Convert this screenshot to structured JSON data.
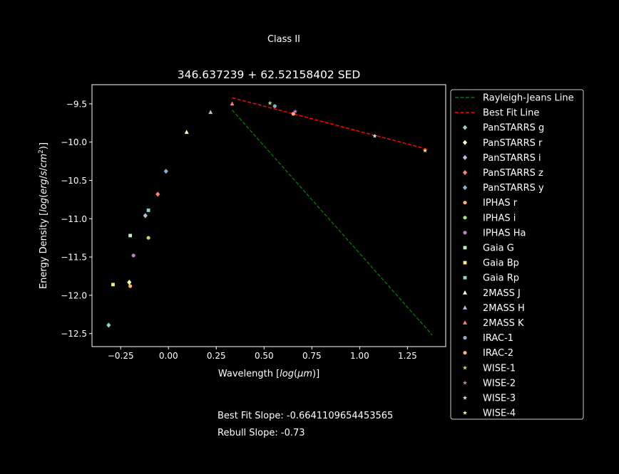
{
  "suptitle": "Class II",
  "footer": {
    "best_fit_slope": "Best Fit Slope: -0.6641109654453565",
    "rebull_slope": "Rebull Slope: -0.73"
  },
  "chart_data": {
    "type": "scatter",
    "title": "346.637239 + 62.52158402 SED",
    "xlabel": "Wavelength [log(μm)]",
    "ylabel": "Energy Density [log(erg/s/cm²)]",
    "xlim": [
      -0.4,
      1.45
    ],
    "ylim": [
      -12.67,
      -9.25
    ],
    "xticks": [
      -0.25,
      0.0,
      0.25,
      0.5,
      0.75,
      1.0,
      1.25
    ],
    "xtick_labels": [
      "−0.25",
      "0.00",
      "0.25",
      "0.50",
      "0.75",
      "1.00",
      "1.25"
    ],
    "yticks": [
      -12.5,
      -12.0,
      -11.5,
      -11.0,
      -10.5,
      -10.0,
      -9.5
    ],
    "ytick_labels": [
      "−12.5",
      "−12.0",
      "−11.5",
      "−11.0",
      "−10.5",
      "−10.0",
      "−9.5"
    ],
    "grid": false,
    "legend_position": "outside-right",
    "lines": [
      {
        "name": "Rayleigh-Jeans Line",
        "color": "#008000",
        "x": [
          0.333,
          1.38
        ],
        "y": [
          -9.58,
          -12.52
        ]
      },
      {
        "name": "Best Fit Line",
        "color": "#ff0000",
        "x": [
          0.333,
          1.35
        ],
        "y": [
          -9.42,
          -10.09
        ]
      }
    ],
    "series": [
      {
        "name": "PanSTARRS g",
        "marker": "diamond",
        "color": "#8dd3c7",
        "x": [
          -0.313
        ],
        "y": [
          -12.39
        ]
      },
      {
        "name": "PanSTARRS r",
        "marker": "diamond",
        "color": "#ffffb3",
        "x": [
          -0.205
        ],
        "y": [
          -11.83
        ]
      },
      {
        "name": "PanSTARRS i",
        "marker": "diamond",
        "color": "#bebada",
        "x": [
          -0.121
        ],
        "y": [
          -10.96
        ]
      },
      {
        "name": "PanSTARRS z",
        "marker": "diamond",
        "color": "#fb8072",
        "x": [
          -0.056
        ],
        "y": [
          -10.68
        ]
      },
      {
        "name": "PanSTARRS y",
        "marker": "diamond",
        "color": "#80b1d3",
        "x": [
          -0.013
        ],
        "y": [
          -10.38
        ]
      },
      {
        "name": "IPHAS r",
        "marker": "circle",
        "color": "#fdb462",
        "x": [
          -0.2
        ],
        "y": [
          -11.88
        ]
      },
      {
        "name": "IPHAS i",
        "marker": "circle",
        "color": "#b3de69",
        "x": [
          -0.105
        ],
        "y": [
          -11.25
        ]
      },
      {
        "name": "IPHAS Ha",
        "marker": "circle",
        "color": "#bc80bd",
        "x": [
          -0.183
        ],
        "y": [
          -11.48
        ]
      },
      {
        "name": "Gaia G",
        "marker": "square",
        "color": "#ccebc5",
        "x": [
          -0.2
        ],
        "y": [
          -11.22
        ]
      },
      {
        "name": "Gaia Bp",
        "marker": "square",
        "color": "#ffed6f",
        "x": [
          -0.29
        ],
        "y": [
          -11.86
        ]
      },
      {
        "name": "Gaia Rp",
        "marker": "square",
        "color": "#8dd3c7",
        "x": [
          -0.105
        ],
        "y": [
          -10.89
        ]
      },
      {
        "name": "2MASS J",
        "marker": "triangle",
        "color": "#ffffb3",
        "x": [
          0.095
        ],
        "y": [
          -9.87
        ]
      },
      {
        "name": "2MASS H",
        "marker": "triangle",
        "color": "#bebada",
        "x": [
          0.22
        ],
        "y": [
          -9.61
        ]
      },
      {
        "name": "2MASS K",
        "marker": "triangle",
        "color": "#fb8072",
        "x": [
          0.333
        ],
        "y": [
          -9.5
        ]
      },
      {
        "name": "IRAC-1",
        "marker": "circle",
        "color": "#80b1d3",
        "x": [
          0.556
        ],
        "y": [
          -9.53
        ]
      },
      {
        "name": "IRAC-2",
        "marker": "circle",
        "color": "#fdb462",
        "x": [
          0.653
        ],
        "y": [
          -9.63
        ]
      },
      {
        "name": "WISE-1",
        "marker": "star",
        "color": "#b3de69",
        "x": [
          0.531
        ],
        "y": [
          -9.49
        ]
      },
      {
        "name": "WISE-2",
        "marker": "star",
        "color": "#bc80bd",
        "x": [
          0.663
        ],
        "y": [
          -9.6
        ]
      },
      {
        "name": "WISE-3",
        "marker": "star",
        "color": "#ccebc5",
        "x": [
          1.079
        ],
        "y": [
          -9.92
        ]
      },
      {
        "name": "WISE-4",
        "marker": "star",
        "color": "#ffed6f",
        "x": [
          1.342
        ],
        "y": [
          -10.11
        ]
      }
    ]
  }
}
